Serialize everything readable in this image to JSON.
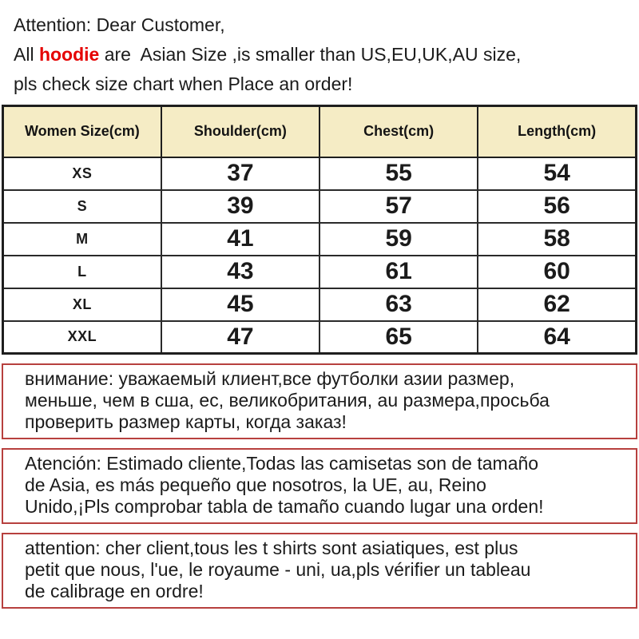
{
  "colors": {
    "highlight_red": "#e50000",
    "table_header_bg": "#f5ecc5",
    "table_border": "#1e1e1e",
    "lang_box_border": "#b7403e"
  },
  "notice": {
    "line1": "Attention: Dear Customer,",
    "line2_prefix": "All ",
    "line2_highlight": "hoodie",
    "line2_suffix": " are  Asian Size ,is smaller than US,EU,UK,AU size,",
    "line3": "pls check size chart when Place an order!"
  },
  "size_table": {
    "columns": [
      "Women Size(cm)",
      "Shoulder(cm)",
      "Chest(cm)",
      "Length(cm)"
    ],
    "rows": [
      {
        "size": "XS",
        "shoulder": "37",
        "chest": "55",
        "length": "54"
      },
      {
        "size": "S",
        "shoulder": "39",
        "chest": "57",
        "length": "56"
      },
      {
        "size": "M",
        "shoulder": "41",
        "chest": "59",
        "length": "58"
      },
      {
        "size": "L",
        "shoulder": "43",
        "chest": "61",
        "length": "60"
      },
      {
        "size": "XL",
        "shoulder": "45",
        "chest": "63",
        "length": "62"
      },
      {
        "size": "XXL",
        "shoulder": "47",
        "chest": "65",
        "length": "64"
      }
    ]
  },
  "translations": {
    "russian": {
      "lines": [
        "внимание: уважаемый клиент,все футболки азии размер,",
        "меньше, чем в сша, ес, великобритания, au размера,просьба",
        "проверить размер карты, когда заказ!"
      ]
    },
    "spanish": {
      "lines": [
        "Atención: Estimado cliente,Todas las camisetas son de tamaño",
        "de Asia, es más pequeño que nosotros, la UE, au, Reino",
        "Unido,¡Pls comprobar tabla de tamaño cuando lugar una orden!"
      ]
    },
    "french": {
      "lines": [
        "attention: cher client,tous les t shirts sont asiatiques, est plus",
        "petit que nous, l'ue, le royaume - uni, ua,pls vérifier un tableau",
        "de calibrage en ordre!"
      ]
    }
  }
}
